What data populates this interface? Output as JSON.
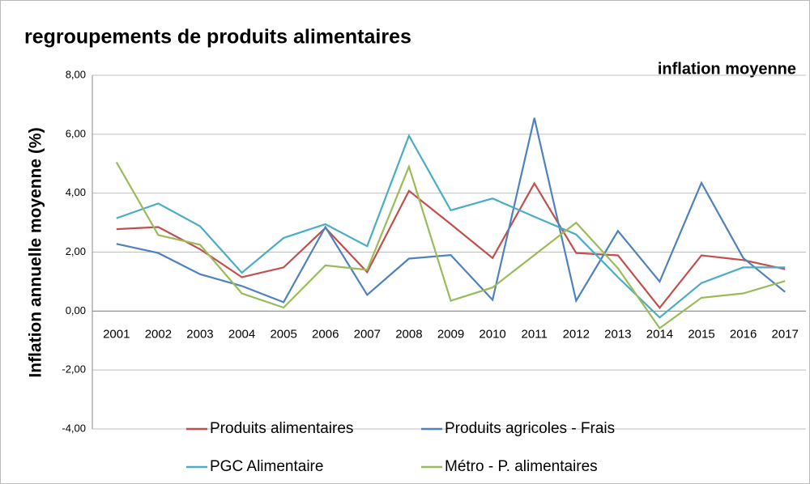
{
  "chart_data": {
    "type": "line",
    "title": "regroupements de produits alimentaires",
    "subtitle": "inflation moyenne",
    "y_label": "Inflation annuelle moyenne (%)",
    "categories": [
      "2001",
      "2002",
      "2003",
      "2004",
      "2005",
      "2006",
      "2007",
      "2008",
      "2009",
      "2010",
      "2011",
      "2012",
      "2013",
      "2014",
      "2015",
      "2016",
      "2017"
    ],
    "series": [
      {
        "name": "Produits alimentaires",
        "color": "#c0504d",
        "values": [
          2.78,
          2.85,
          2.1,
          1.15,
          1.48,
          2.82,
          1.32,
          4.08,
          2.95,
          1.8,
          4.33,
          1.97,
          1.89,
          0.11,
          1.89,
          1.73,
          1.42
        ]
      },
      {
        "name": "Produits agricoles - Frais",
        "color": "#4f81bd",
        "values": [
          2.28,
          1.97,
          1.25,
          0.85,
          0.3,
          2.85,
          0.55,
          1.78,
          1.9,
          0.38,
          6.55,
          0.35,
          2.72,
          1.0,
          4.35,
          1.8,
          0.65
        ]
      },
      {
        "name": "PGC Alimentaire",
        "color": "#4bacc6",
        "values": [
          3.15,
          3.65,
          2.88,
          1.3,
          2.48,
          2.95,
          2.2,
          5.95,
          3.42,
          3.82,
          3.2,
          2.6,
          1.15,
          -0.22,
          0.95,
          1.48,
          1.48
        ]
      },
      {
        "name": "Métro - P. alimentaires",
        "color": "#9bbb59",
        "values": [
          5.05,
          2.58,
          2.25,
          0.6,
          0.12,
          1.55,
          1.4,
          4.9,
          0.35,
          0.8,
          1.9,
          3.0,
          1.45,
          -0.58,
          0.45,
          0.6,
          1.02
        ]
      }
    ],
    "ylim": [
      -4,
      8
    ],
    "yticks": [
      {
        "value": -4,
        "label": "-4,00"
      },
      {
        "value": -2,
        "label": "-2,00"
      },
      {
        "value": 0,
        "label": "0,00"
      },
      {
        "value": 2,
        "label": "2,00"
      },
      {
        "value": 4,
        "label": "4,00"
      },
      {
        "value": 6,
        "label": "6,00"
      },
      {
        "value": 8,
        "label": "8,00"
      }
    ],
    "grid": true,
    "legend": "bottom"
  }
}
